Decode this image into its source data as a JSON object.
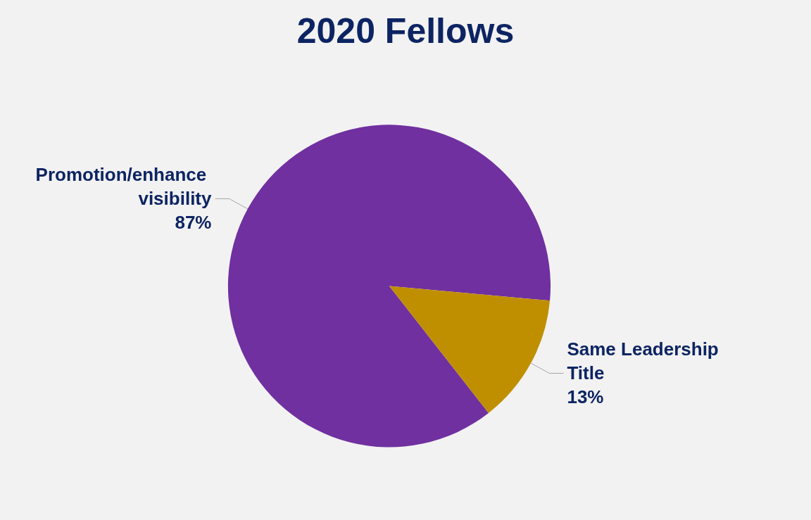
{
  "chart_data": {
    "type": "pie",
    "title": "2020 Fellows",
    "categories": [
      "Promotion/enhance visibility",
      "Same Leadership Title"
    ],
    "values": [
      87,
      13
    ],
    "value_labels": [
      "87%",
      "13%"
    ],
    "colors": [
      "#7030a0",
      "#bf8f00"
    ]
  }
}
